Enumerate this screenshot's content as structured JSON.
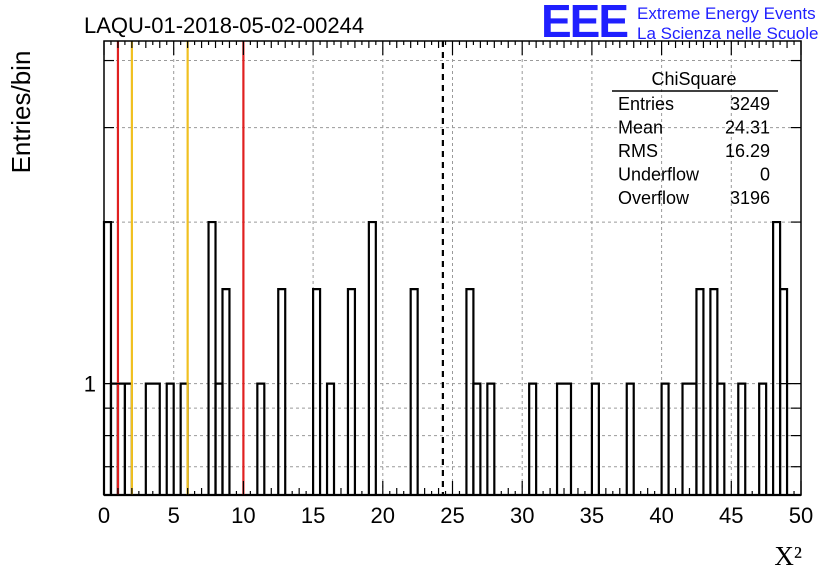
{
  "chart_data": {
    "type": "histogram",
    "title": "LAQU-01-2018-05-02-00244",
    "xlabel": "X²",
    "ylabel": "Entries/bin",
    "xlim": [
      0,
      50
    ],
    "ylim": [
      0.62,
      4.35
    ],
    "yscale": "log",
    "bin_width": 0.5,
    "x_ticks": [
      "0",
      "5",
      "10",
      "15",
      "20",
      "25",
      "30",
      "35",
      "40",
      "45",
      "50"
    ],
    "y_ticks": [
      "1"
    ],
    "grid": true,
    "bins": [
      {
        "x0": 0.0,
        "x1": 0.5,
        "count": 2
      },
      {
        "x0": 0.5,
        "x1": 1.0,
        "count": 1
      },
      {
        "x0": 1.0,
        "x1": 1.5,
        "count": 1
      },
      {
        "x0": 1.5,
        "x1": 2.0,
        "count": 1
      },
      {
        "x0": 3.0,
        "x1": 4.0,
        "count": 1
      },
      {
        "x0": 4.5,
        "x1": 5.0,
        "count": 1
      },
      {
        "x0": 5.5,
        "x1": 6.0,
        "count": 1
      },
      {
        "x0": 7.5,
        "x1": 8.0,
        "count": 2
      },
      {
        "x0": 8.0,
        "x1": 8.5,
        "count": 1
      },
      {
        "x0": 8.5,
        "x1": 9.0,
        "count": 1.5
      },
      {
        "x0": 11.0,
        "x1": 11.5,
        "count": 1
      },
      {
        "x0": 12.5,
        "x1": 13.0,
        "count": 1.5
      },
      {
        "x0": 15.0,
        "x1": 15.5,
        "count": 1.5
      },
      {
        "x0": 16.0,
        "x1": 16.5,
        "count": 1
      },
      {
        "x0": 17.5,
        "x1": 18.0,
        "count": 1.5
      },
      {
        "x0": 19.0,
        "x1": 19.5,
        "count": 2
      },
      {
        "x0": 22.0,
        "x1": 22.5,
        "count": 1.5
      },
      {
        "x0": 26.0,
        "x1": 26.5,
        "count": 1.5
      },
      {
        "x0": 26.5,
        "x1": 27.0,
        "count": 1
      },
      {
        "x0": 27.5,
        "x1": 28.0,
        "count": 1
      },
      {
        "x0": 30.5,
        "x1": 31.0,
        "count": 1
      },
      {
        "x0": 32.5,
        "x1": 33.5,
        "count": 1
      },
      {
        "x0": 35.0,
        "x1": 35.5,
        "count": 1
      },
      {
        "x0": 37.5,
        "x1": 38.0,
        "count": 1
      },
      {
        "x0": 40.0,
        "x1": 40.5,
        "count": 1
      },
      {
        "x0": 41.5,
        "x1": 42.5,
        "count": 1
      },
      {
        "x0": 42.5,
        "x1": 43.0,
        "count": 1.5
      },
      {
        "x0": 43.5,
        "x1": 44.0,
        "count": 1.5
      },
      {
        "x0": 44.0,
        "x1": 44.5,
        "count": 1
      },
      {
        "x0": 45.5,
        "x1": 46.0,
        "count": 1
      },
      {
        "x0": 47.0,
        "x1": 47.5,
        "count": 1
      },
      {
        "x0": 48.0,
        "x1": 48.5,
        "count": 2
      },
      {
        "x0": 48.5,
        "x1": 49.0,
        "count": 1.5
      }
    ],
    "reference_lines": [
      {
        "name": "red-line-1",
        "x": 1,
        "color": "#e02020",
        "style": "solid"
      },
      {
        "name": "yellow-line-1",
        "x": 2,
        "color": "#f0c020",
        "style": "solid"
      },
      {
        "name": "yellow-line-2",
        "x": 6,
        "color": "#f0c020",
        "style": "solid"
      },
      {
        "name": "red-line-2",
        "x": 10,
        "color": "#e02020",
        "style": "solid"
      },
      {
        "name": "mean-line",
        "x": 24.31,
        "color": "#000000",
        "style": "dashed"
      }
    ],
    "stats": {
      "title": "ChiSquare",
      "rows": [
        {
          "label": "Entries",
          "value": "3249"
        },
        {
          "label": "Mean",
          "value": "24.31"
        },
        {
          "label": "RMS",
          "value": "16.29"
        },
        {
          "label": "Underflow",
          "value": "0"
        },
        {
          "label": "Overflow",
          "value": "3196"
        }
      ]
    }
  },
  "logo": {
    "mark": "EEE",
    "line1": "Extreme Energy Events",
    "line2": "La Scienza nelle Scuole",
    "color": "#1f1fff"
  }
}
